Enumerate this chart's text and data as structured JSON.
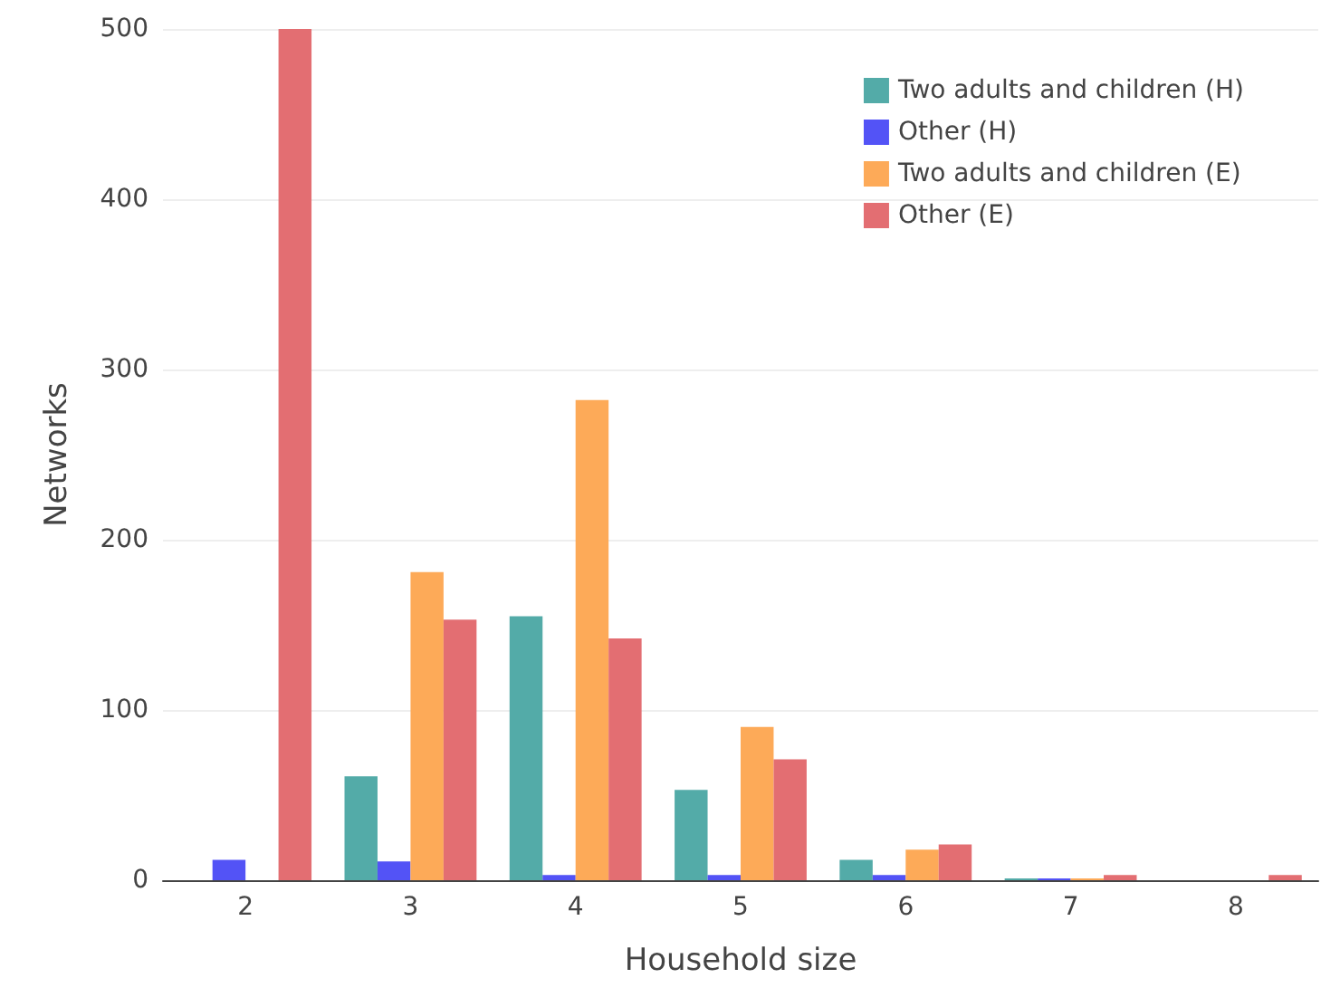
{
  "chart_data": {
    "type": "bar",
    "xlabel": "Household size",
    "ylabel": "Networks",
    "categories": [
      "2",
      "3",
      "4",
      "5",
      "6",
      "7",
      "8"
    ],
    "series": [
      {
        "name": "Two adults and children (H)",
        "color": "#4aa6a3",
        "values": [
          0,
          61,
          155,
          53,
          12,
          1,
          0
        ]
      },
      {
        "name": "Other (H)",
        "color": "#4a4af5",
        "values": [
          12,
          11,
          3,
          3,
          3,
          1,
          0
        ]
      },
      {
        "name": "Two adults and children (E)",
        "color": "#fda54f",
        "values": [
          0,
          181,
          282,
          90,
          18,
          1,
          0
        ]
      },
      {
        "name": "Other (E)",
        "color": "#e1666a",
        "values": [
          500,
          153,
          142,
          71,
          21,
          3,
          3
        ]
      }
    ],
    "ylim": [
      0,
      500
    ],
    "yticks": [
      0,
      100,
      200,
      300,
      400,
      500
    ],
    "grid": "y",
    "legend": "top right"
  }
}
